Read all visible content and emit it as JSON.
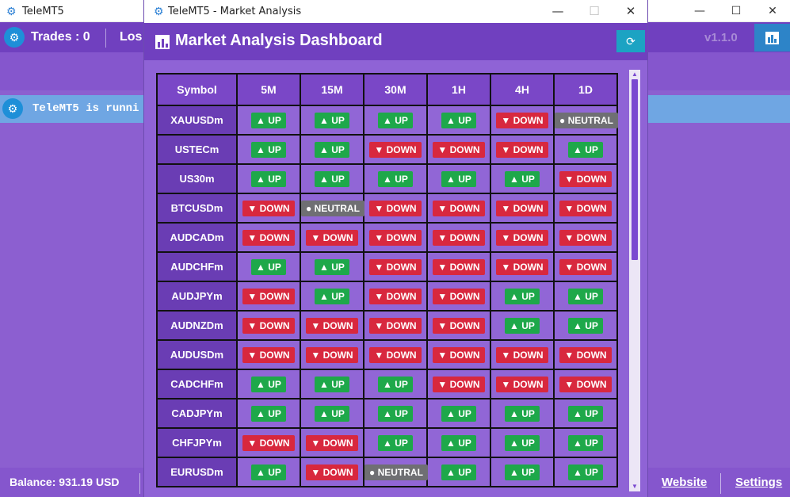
{
  "main": {
    "title": "TeleMT5",
    "header": {
      "trades_label": "Trades : 0",
      "loss_label": "Los",
      "version": "v1.1.0"
    },
    "status_text": "TeleMT5 is runni",
    "footer": {
      "balance": "Balance: 931.19 USD",
      "website": "Website",
      "settings": "Settings"
    },
    "window_controls": {
      "minimize": "—",
      "maximize": "☐",
      "close": "✕"
    }
  },
  "market_window": {
    "title": "TeleMT5 - Market Analysis",
    "header_title": "Market Analysis Dashboard",
    "window_controls": {
      "minimize": "—",
      "maximize": "☐",
      "close": "✕"
    },
    "columns": [
      "Symbol",
      "5M",
      "15M",
      "30M",
      "1H",
      "4H",
      "1D"
    ],
    "rows": [
      {
        "symbol": "XAUUSDm",
        "signals": [
          "UP",
          "UP",
          "UP",
          "UP",
          "DOWN",
          "NEUTRAL"
        ]
      },
      {
        "symbol": "USTECm",
        "signals": [
          "UP",
          "UP",
          "DOWN",
          "DOWN",
          "DOWN",
          "UP"
        ]
      },
      {
        "symbol": "US30m",
        "signals": [
          "UP",
          "UP",
          "UP",
          "UP",
          "UP",
          "DOWN"
        ]
      },
      {
        "symbol": "BTCUSDm",
        "signals": [
          "DOWN",
          "NEUTRAL",
          "DOWN",
          "DOWN",
          "DOWN",
          "DOWN"
        ]
      },
      {
        "symbol": "AUDCADm",
        "signals": [
          "DOWN",
          "DOWN",
          "DOWN",
          "DOWN",
          "DOWN",
          "DOWN"
        ]
      },
      {
        "symbol": "AUDCHFm",
        "signals": [
          "UP",
          "UP",
          "DOWN",
          "DOWN",
          "DOWN",
          "DOWN"
        ]
      },
      {
        "symbol": "AUDJPYm",
        "signals": [
          "DOWN",
          "UP",
          "DOWN",
          "DOWN",
          "UP",
          "UP"
        ]
      },
      {
        "symbol": "AUDNZDm",
        "signals": [
          "DOWN",
          "DOWN",
          "DOWN",
          "DOWN",
          "UP",
          "UP"
        ]
      },
      {
        "symbol": "AUDUSDm",
        "signals": [
          "DOWN",
          "DOWN",
          "DOWN",
          "DOWN",
          "DOWN",
          "DOWN"
        ]
      },
      {
        "symbol": "CADCHFm",
        "signals": [
          "UP",
          "UP",
          "UP",
          "DOWN",
          "DOWN",
          "DOWN"
        ]
      },
      {
        "symbol": "CADJPYm",
        "signals": [
          "UP",
          "UP",
          "UP",
          "UP",
          "UP",
          "UP"
        ]
      },
      {
        "symbol": "CHFJPYm",
        "signals": [
          "DOWN",
          "DOWN",
          "UP",
          "UP",
          "UP",
          "UP"
        ]
      },
      {
        "symbol": "EURUSDm",
        "signals": [
          "UP",
          "DOWN",
          "NEUTRAL",
          "UP",
          "UP",
          "UP"
        ]
      }
    ],
    "signal_labels": {
      "UP": "▲ UP",
      "DOWN": "▼ DOWN",
      "NEUTRAL": "● NEUTRAL"
    },
    "colors": {
      "up": "#1ea84a",
      "down": "#d8283e",
      "neutral": "#6f6f73",
      "header": "#7040bf",
      "accent": "#1ca3c3"
    },
    "icons": {
      "title": "gear-icon",
      "header": "bar-chart-icon",
      "refresh": "refresh-icon"
    }
  }
}
